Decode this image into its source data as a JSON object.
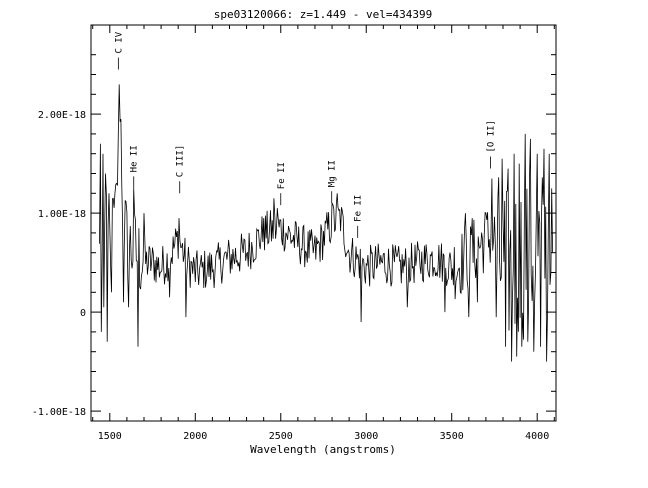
{
  "chart_data": {
    "type": "line",
    "title": "spe03120066: z=1.449 - vel=434399",
    "xlabel": "Wavelength (angstroms)",
    "ylabel": "",
    "xlim": [
      1390,
      4110
    ],
    "ylim": [
      -1.1e-18,
      2.9e-18
    ],
    "xticks": [
      1500,
      2000,
      2500,
      3000,
      3500,
      4000
    ],
    "xtick_labels": [
      "1500",
      "2000",
      "2500",
      "3000",
      "3500",
      "4000"
    ],
    "yticks": [
      -1e-18,
      0,
      1e-18,
      2e-18
    ],
    "ytick_labels": [
      "-1.00E-18",
      "0",
      "1.00E-18",
      "2.00E-18"
    ],
    "grid": false,
    "spectrum": {
      "x_start": 1440,
      "x_end": 4090,
      "step": 5,
      "anchors": [
        [
          1440,
          5.5e-19
        ],
        [
          1470,
          7.5e-19
        ],
        [
          1500,
          7e-19
        ],
        [
          1530,
          9e-19
        ],
        [
          1550,
          1.6e-18
        ],
        [
          1560,
          2.2e-18
        ],
        [
          1570,
          1.2e-18
        ],
        [
          1600,
          7e-19
        ],
        [
          1650,
          6e-19
        ],
        [
          1700,
          5e-19
        ],
        [
          1750,
          5e-19
        ],
        [
          1800,
          4.5e-19
        ],
        [
          1850,
          5.5e-19
        ],
        [
          1900,
          7.5e-19
        ],
        [
          1950,
          5e-19
        ],
        [
          2000,
          4e-19
        ],
        [
          2100,
          4.5e-19
        ],
        [
          2200,
          5.5e-19
        ],
        [
          2300,
          6e-19
        ],
        [
          2400,
          8e-19
        ],
        [
          2500,
          8.5e-19
        ],
        [
          2600,
          7e-19
        ],
        [
          2700,
          6e-19
        ],
        [
          2800,
          9e-19
        ],
        [
          2850,
          9.5e-19
        ],
        [
          2900,
          6e-19
        ],
        [
          3000,
          4.5e-19
        ],
        [
          3100,
          5e-19
        ],
        [
          3200,
          4.5e-19
        ],
        [
          3300,
          5e-19
        ],
        [
          3400,
          5.5e-19
        ],
        [
          3500,
          4.5e-19
        ],
        [
          3600,
          5.5e-19
        ],
        [
          3700,
          7.5e-19
        ],
        [
          3750,
          7.5e-19
        ],
        [
          3800,
          4e-19
        ],
        [
          3900,
          5.5e-19
        ],
        [
          4000,
          6e-19
        ],
        [
          4090,
          7e-19
        ]
      ],
      "spikes": [
        [
          1445,
          1.7e-18
        ],
        [
          1450,
          -2e-19
        ],
        [
          1460,
          1.6e-18
        ],
        [
          1465,
          5e-20
        ],
        [
          1475,
          1.4e-18
        ],
        [
          1485,
          -3e-19
        ],
        [
          1495,
          1.2e-18
        ],
        [
          1510,
          2e-19
        ],
        [
          1520,
          1.15e-18
        ],
        [
          1540,
          1.3e-18
        ],
        [
          1555,
          2.3e-18
        ],
        [
          1565,
          1.95e-18
        ],
        [
          1580,
          1e-19
        ],
        [
          1610,
          5e-20
        ],
        [
          1640,
          1.25e-18
        ],
        [
          1665,
          -3.5e-19
        ],
        [
          1700,
          1e-18
        ],
        [
          1850,
          1.5e-19
        ],
        [
          1905,
          9.5e-19
        ],
        [
          1945,
          -5e-20
        ],
        [
          2400,
          9.5e-19
        ],
        [
          2460,
          1.15e-18
        ],
        [
          2480,
          1.05e-18
        ],
        [
          2800,
          1.1e-18
        ],
        [
          2830,
          1.2e-18
        ],
        [
          2970,
          -1e-19
        ],
        [
          3240,
          5e-20
        ],
        [
          3460,
          0.0
        ],
        [
          3580,
          1e-18
        ],
        [
          3600,
          -5e-20
        ],
        [
          3620,
          9.5e-19
        ],
        [
          3650,
          1e-19
        ],
        [
          3700,
          1e-18
        ],
        [
          3735,
          1.35e-18
        ],
        [
          3760,
          -5e-20
        ],
        [
          3795,
          1.55e-18
        ],
        [
          3815,
          -3.5e-19
        ],
        [
          3830,
          1.45e-18
        ],
        [
          3850,
          -5e-19
        ],
        [
          3865,
          1.6e-18
        ],
        [
          3880,
          -4.5e-19
        ],
        [
          3895,
          1.5e-18
        ],
        [
          3910,
          -3.5e-19
        ],
        [
          3930,
          1.8e-18
        ],
        [
          3945,
          -3e-19
        ],
        [
          3960,
          1.75e-18
        ],
        [
          3980,
          -4e-19
        ],
        [
          4000,
          1.6e-18
        ],
        [
          4020,
          -3.5e-19
        ],
        [
          4040,
          1.65e-18
        ],
        [
          4055,
          -5e-19
        ],
        [
          4070,
          1.6e-18
        ],
        [
          4080,
          4e-19
        ],
        [
          4085,
          1.25e-18
        ]
      ]
    },
    "line_labels": [
      {
        "label": "C IV",
        "x": 1550,
        "y": 2.45e-18
      },
      {
        "label": "He II",
        "x": 1640,
        "y": 1.25e-18
      },
      {
        "label": "C III]",
        "x": 1909,
        "y": 1.2e-18
      },
      {
        "label": "Fe II",
        "x": 2500,
        "y": 1.08e-18
      },
      {
        "label": "Mg II",
        "x": 2798,
        "y": 1.1e-18
      },
      {
        "label": "Fe II",
        "x": 2950,
        "y": 7.5e-19
      },
      {
        "label": "[O II]",
        "x": 3727,
        "y": 1.45e-18
      }
    ]
  }
}
